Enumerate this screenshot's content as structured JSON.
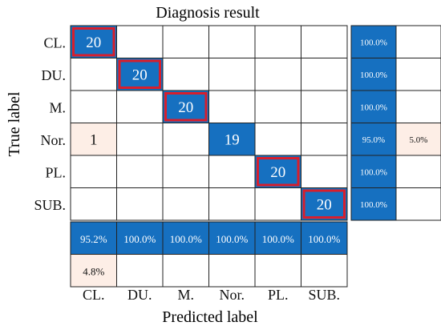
{
  "chart_data": {
    "type": "heatmap",
    "title": "Diagnosis result",
    "xlabel": "Predicted label",
    "ylabel": "True label",
    "row_labels": [
      "CL.",
      "DU.",
      "M.",
      "Nor.",
      "PL.",
      "SUB."
    ],
    "col_labels": [
      "CL.",
      "DU.",
      "M.",
      "Nor.",
      "PL.",
      "SUB."
    ],
    "matrix": [
      [
        20,
        0,
        0,
        0,
        0,
        0
      ],
      [
        0,
        20,
        0,
        0,
        0,
        0
      ],
      [
        0,
        0,
        20,
        0,
        0,
        0
      ],
      [
        1,
        0,
        0,
        19,
        0,
        0
      ],
      [
        0,
        0,
        0,
        0,
        20,
        0
      ],
      [
        0,
        0,
        0,
        0,
        0,
        20
      ]
    ],
    "row_summary": [
      [
        "100.0%",
        ""
      ],
      [
        "100.0%",
        ""
      ],
      [
        "100.0%",
        ""
      ],
      [
        "95.0%",
        "5.0%"
      ],
      [
        "100.0%",
        ""
      ],
      [
        "100.0%",
        ""
      ]
    ],
    "col_summary": [
      [
        "95.2%",
        "100.0%",
        "100.0%",
        "100.0%",
        "100.0%",
        "100.0%"
      ],
      [
        "4.8%",
        "",
        "",
        "",
        "",
        ""
      ]
    ],
    "highlighted_cells": [
      [
        0,
        0
      ],
      [
        1,
        1
      ],
      [
        2,
        2
      ],
      [
        4,
        4
      ],
      [
        5,
        5
      ]
    ],
    "colors": {
      "correct": "#1670c0",
      "error": "#fdeee6",
      "highlight_border": "#d81e2c",
      "grid": "#222222"
    }
  }
}
